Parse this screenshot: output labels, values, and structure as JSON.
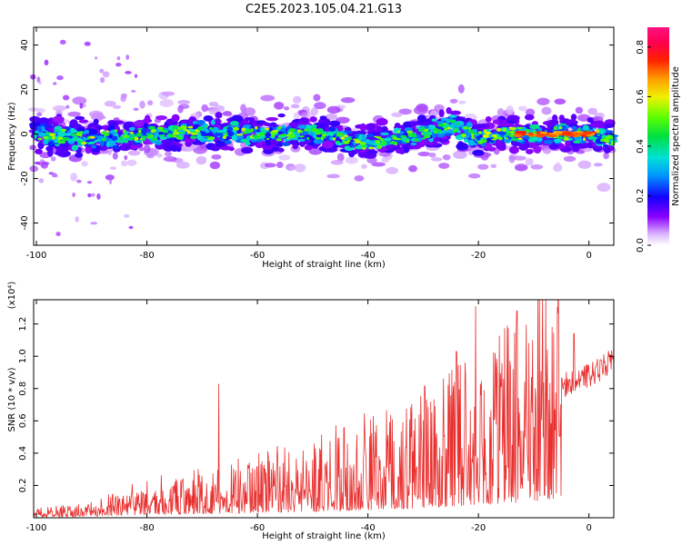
{
  "title": "C2E5.2023.105.04.21.G13",
  "chart_data": [
    {
      "type": "heatmap",
      "xlabel": "Height of straight line (km)",
      "ylabel": "Frequency (Hz)",
      "xlim": [
        -100.5,
        4.5
      ],
      "ylim": [
        -50,
        48
      ],
      "xticks": [
        -100,
        -80,
        -60,
        -40,
        -20,
        0
      ],
      "yticks": [
        -40,
        -20,
        0,
        20,
        40
      ],
      "colorbar": {
        "label": "Normalized spectral amplitude",
        "range": [
          0.0,
          0.88
        ],
        "ticks": [
          "0.0",
          "0.2",
          "0.4",
          "0.6",
          "0.8"
        ],
        "colormap": "rainbow (white → purple → blue → cyan → green → yellow → orange → red → magenta)"
      },
      "band": {
        "description": "Strong energy concentrated near 0 Hz across all heights; peak amplitude (~0.8) near -12 to 0 km",
        "center_hz": [
          {
            "x": -100,
            "f": 0
          },
          {
            "x": -90,
            "f": -2
          },
          {
            "x": -80,
            "f": 0
          },
          {
            "x": -70,
            "f": 1
          },
          {
            "x": -60,
            "f": 0
          },
          {
            "x": -50,
            "f": 0
          },
          {
            "x": -40,
            "f": -4
          },
          {
            "x": -30,
            "f": 0
          },
          {
            "x": -25,
            "f": 4
          },
          {
            "x": -20,
            "f": -2
          },
          {
            "x": -15,
            "f": 0
          },
          {
            "x": -10,
            "f": 0
          },
          {
            "x": 0,
            "f": 0
          },
          {
            "x": 4,
            "f": -3
          }
        ],
        "half_width_hz": 7
      }
    },
    {
      "type": "line",
      "xlabel": "Height of straight line (km)",
      "ylabel": "SNR (10 * v/v)",
      "yscale_note": "(x10⁴)",
      "xlim": [
        -100.5,
        4.5
      ],
      "ylim": [
        0,
        1.35
      ],
      "xticks": [
        -100,
        -80,
        -60,
        -40,
        -20,
        0
      ],
      "yticks": [
        "0.2",
        "0.4",
        "0.6",
        "0.8",
        "1.0",
        "1.2"
      ],
      "series": [
        {
          "color": "#e8302f",
          "trend": [
            {
              "x": -100,
              "y": 0.03
            },
            {
              "x": -90,
              "y": 0.05
            },
            {
              "x": -80,
              "y": 0.12
            },
            {
              "x": -70,
              "y": 0.16
            },
            {
              "x": -60,
              "y": 0.2
            },
            {
              "x": -50,
              "y": 0.25
            },
            {
              "x": -40,
              "y": 0.32
            },
            {
              "x": -30,
              "y": 0.4
            },
            {
              "x": -20,
              "y": 0.5
            },
            {
              "x": -10,
              "y": 0.68
            },
            {
              "x": -5,
              "y": 0.82
            },
            {
              "x": 0,
              "y": 0.88
            },
            {
              "x": 4.5,
              "y": 0.98
            }
          ],
          "spikes": [
            {
              "x": -67,
              "y": 0.83
            },
            {
              "x": -20.5,
              "y": 1.31
            },
            {
              "x": -13,
              "y": 1.28
            },
            {
              "x": -7.8,
              "y": 1.35
            },
            {
              "x": -2.7,
              "y": 1.14
            },
            {
              "x": -10.2,
              "y": 1.1
            },
            {
              "x": -24,
              "y": 1.03
            },
            {
              "x": -17,
              "y": 1.02
            }
          ]
        }
      ]
    }
  ]
}
